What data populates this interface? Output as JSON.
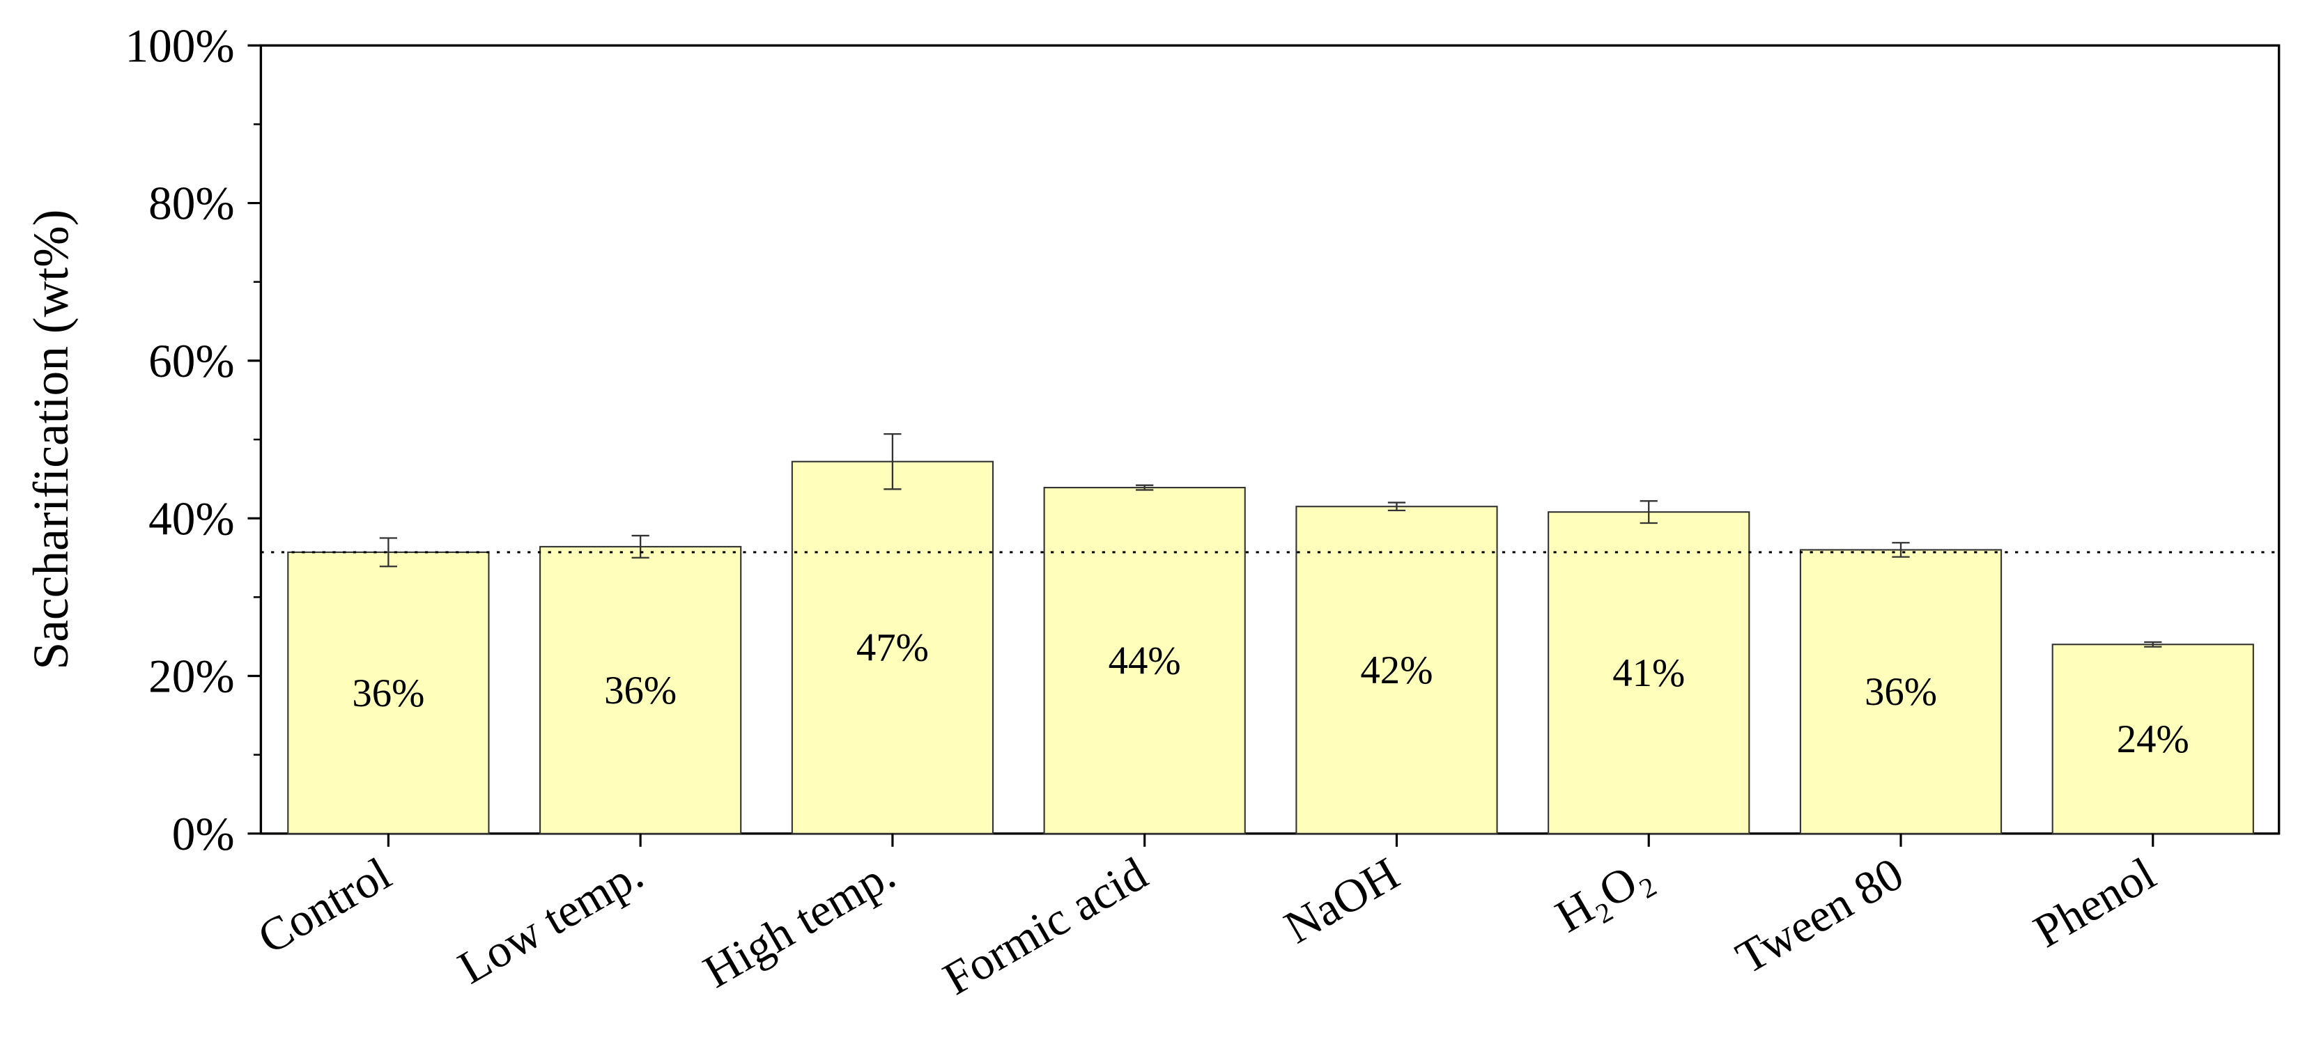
{
  "chart_data": {
    "type": "bar",
    "ylabel": "Saccharification (wt%)",
    "categories": [
      "Control",
      "Low temp.",
      "High temp.",
      "Formic acid",
      "NaOH",
      "H₂O₂",
      "Tween 80",
      "Phenol"
    ],
    "values": [
      35.7,
      36.4,
      47.2,
      43.9,
      41.5,
      40.8,
      36.0,
      24.0
    ],
    "value_labels": [
      "36%",
      "36%",
      "47%",
      "44%",
      "42%",
      "41%",
      "36%",
      "24%"
    ],
    "error": [
      1.8,
      1.4,
      3.5,
      0.3,
      0.5,
      1.4,
      0.9,
      0.3
    ],
    "color": "#ffffbb",
    "reference_line": 35.7,
    "ylim": [
      0,
      100
    ],
    "yticks": [
      {
        "value": 0,
        "label": "0%"
      },
      {
        "value": 20,
        "label": "20%"
      },
      {
        "value": 40,
        "label": "40%"
      },
      {
        "value": 60,
        "label": "60%"
      },
      {
        "value": 80,
        "label": "80%"
      },
      {
        "value": 100,
        "label": "100%"
      }
    ],
    "yminor_ticks": [
      10,
      30,
      50,
      70,
      90
    ]
  }
}
